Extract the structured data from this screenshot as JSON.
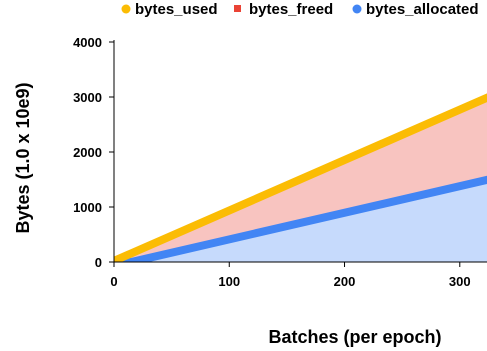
{
  "chart_data": {
    "type": "area",
    "title": "",
    "xlabel": "Batches (per epoch)",
    "ylabel": "Bytes (1.0 x 10e9)",
    "xlim": [
      0,
      325
    ],
    "ylim": [
      0,
      4000
    ],
    "x_ticks": [
      0,
      100,
      200,
      300
    ],
    "y_ticks": [
      0,
      1000,
      2000,
      3000,
      4000
    ],
    "x_tick_labels": [
      "0",
      "100",
      "200",
      "300"
    ],
    "y_tick_labels": [
      "0",
      "1000",
      "2000",
      "3000",
      "4000"
    ],
    "grid": false,
    "legend_position": "top",
    "series": [
      {
        "name": "bytes_used",
        "kind": "line",
        "color": "#fbbc04",
        "x": [
          0,
          325
        ],
        "values": [
          20,
          3000
        ]
      },
      {
        "name": "bytes_freed",
        "kind": "band",
        "color": "#f8c4c0",
        "marker_color": "#ea4335",
        "x": [
          0,
          325
        ],
        "values": [
          20,
          3000
        ]
      },
      {
        "name": "bytes_allocated",
        "kind": "area",
        "color": "#4285f4",
        "fill_color": "#c6dafc",
        "x": [
          0,
          15,
          325
        ],
        "values": [
          0,
          0,
          1500
        ]
      }
    ]
  }
}
